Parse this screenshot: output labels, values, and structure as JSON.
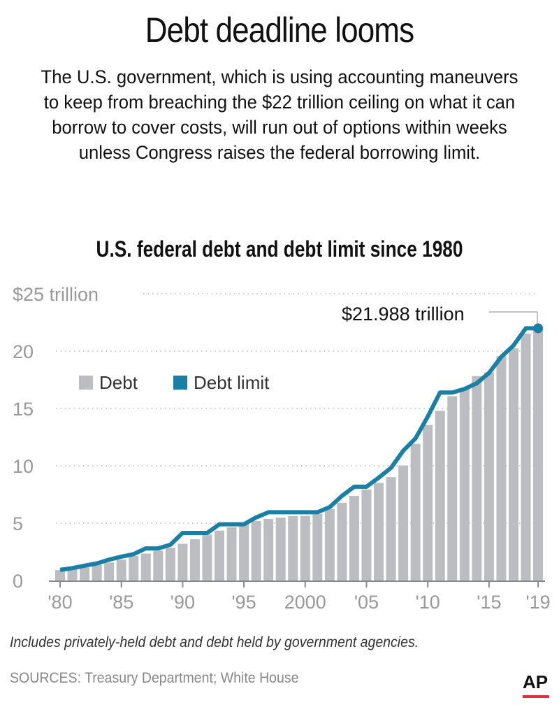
{
  "header": {
    "title": "Debt deadline looms",
    "subtitle": "The U.S. government, which is using accounting maneuvers to keep from breaching the $22 trillion ceiling on what it can borrow to cover costs, will run out of options within weeks unless Congress raises the federal borrowing limit."
  },
  "chart_data": {
    "type": "bar",
    "title": "U.S. federal debt and debt limit since 1980",
    "xlabel": "",
    "ylabel": "",
    "ylim": [
      0,
      25
    ],
    "yticks": [
      0,
      5,
      10,
      15,
      20,
      25
    ],
    "ytick_labels": [
      "0",
      "5",
      "10",
      "15",
      "20",
      "$25 trillion"
    ],
    "xtick_years": [
      1980,
      1985,
      1990,
      1995,
      2000,
      2005,
      2010,
      2015,
      2019
    ],
    "xtick_labels": [
      "'80",
      "'85",
      "'90",
      "'95",
      "2000",
      "'05",
      "'10",
      "'15",
      "'19"
    ],
    "grid": true,
    "legend_placement": "top-left",
    "x": [
      1980,
      1981,
      1982,
      1983,
      1984,
      1985,
      1986,
      1987,
      1988,
      1989,
      1990,
      1991,
      1992,
      1993,
      1994,
      1995,
      1996,
      1997,
      1998,
      1999,
      2000,
      2001,
      2002,
      2003,
      2004,
      2005,
      2006,
      2007,
      2008,
      2009,
      2010,
      2011,
      2012,
      2013,
      2014,
      2015,
      2016,
      2017,
      2018,
      2019
    ],
    "series": [
      {
        "name": "Debt",
        "kind": "bar",
        "color": "#bcbdc0",
        "values": [
          0.91,
          1.0,
          1.14,
          1.38,
          1.57,
          1.82,
          2.13,
          2.35,
          2.6,
          2.87,
          3.2,
          3.6,
          4.0,
          4.35,
          4.64,
          4.92,
          5.18,
          5.37,
          5.48,
          5.61,
          5.63,
          5.81,
          6.23,
          6.78,
          7.38,
          7.93,
          8.51,
          9.01,
          10.03,
          11.91,
          13.56,
          14.79,
          16.07,
          16.74,
          17.82,
          18.15,
          19.57,
          20.24,
          21.52,
          21.988
        ]
      },
      {
        "name": "Debt limit",
        "kind": "line",
        "color": "#1a7fa5",
        "values": [
          0.93,
          1.08,
          1.29,
          1.49,
          1.82,
          2.08,
          2.3,
          2.8,
          2.8,
          3.12,
          4.15,
          4.15,
          4.15,
          4.9,
          4.9,
          4.9,
          5.5,
          5.95,
          5.95,
          5.95,
          5.95,
          5.95,
          6.4,
          7.38,
          8.18,
          8.18,
          8.97,
          9.82,
          11.32,
          12.39,
          14.29,
          16.39,
          16.39,
          16.7,
          17.2,
          18.1,
          19.5,
          20.5,
          21.988,
          21.988
        ]
      }
    ],
    "annotation": "$21.988 trillion"
  },
  "footer": {
    "note": "Includes privately-held debt and debt held by government agencies.",
    "sources": "SOURCES: Treasury Department; White House",
    "logo": "AP"
  }
}
